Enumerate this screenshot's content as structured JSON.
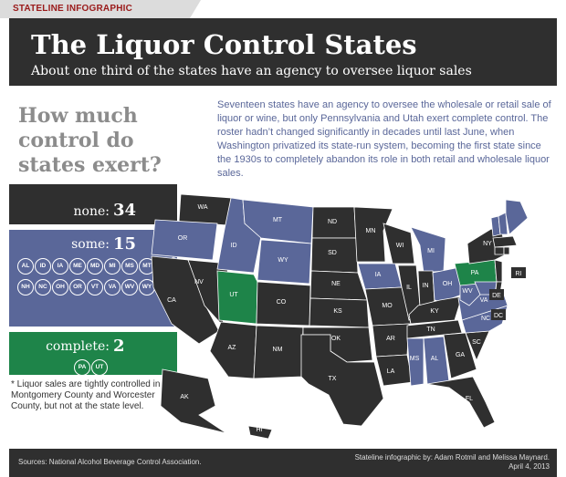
{
  "tag": "STATELINE INFOGRAPHIC",
  "header": {
    "title": "The Liquor Control States",
    "subtitle": "About one third of the states have an agency to oversee liquor sales"
  },
  "question": "How much control do states exert?",
  "intro": "Seventeen states have an agency to oversee the wholesale or retail sale of liquor or wine, but only Pennsylvania and Utah exert complete control. The roster hadn’t changed significantly in decades until last June, when Washington privatized its state-run system, becoming the first state since the 1930s to completely abandon its role in both retail and wholesale liquor sales.",
  "colors": {
    "none": "#2f2f2f",
    "some": "#5a6799",
    "complete": "#1e8449"
  },
  "footnote": "* Liquor sales are tightly controlled in Montgomery County and Worcester County, but not at the state level.",
  "footer": {
    "source": "Sources: National Alcohol Beverage Control Association.",
    "credit": "Stateline infographic by: Adam Rotmil and Melissa Maynard.",
    "date": "April 4, 2013"
  },
  "chart_data": {
    "type": "table",
    "categories": [
      {
        "label": "none:",
        "count": "34",
        "states": []
      },
      {
        "label": "some:",
        "count": "15",
        "marker": "*",
        "states": [
          "AL",
          "ID",
          "IA",
          "ME",
          "MD",
          "MI",
          "MS",
          "MT",
          "NH",
          "NC",
          "OH",
          "OR",
          "VT",
          "VA",
          "WV",
          "WY"
        ]
      },
      {
        "label": "complete:",
        "count": "2",
        "states": [
          "PA",
          "UT"
        ]
      }
    ],
    "map": {
      "some": [
        "OR",
        "ID",
        "MT",
        "WY",
        "IA",
        "MI",
        "OH",
        "WV",
        "VA",
        "NC",
        "AL",
        "MS",
        "VT",
        "NH",
        "ME",
        "MD"
      ],
      "complete": [
        "UT",
        "PA"
      ],
      "none": [
        "WA",
        "CA",
        "NV",
        "AZ",
        "CO",
        "NM",
        "ND",
        "SD",
        "NE",
        "KS",
        "OK",
        "TX",
        "MN",
        "WI",
        "IL",
        "IN",
        "MO",
        "AR",
        "LA",
        "KY",
        "TN",
        "GA",
        "FL",
        "SC",
        "NY",
        "NJ",
        "DE",
        "MA",
        "CT",
        "RI",
        "DC",
        "AK",
        "HI"
      ]
    }
  }
}
